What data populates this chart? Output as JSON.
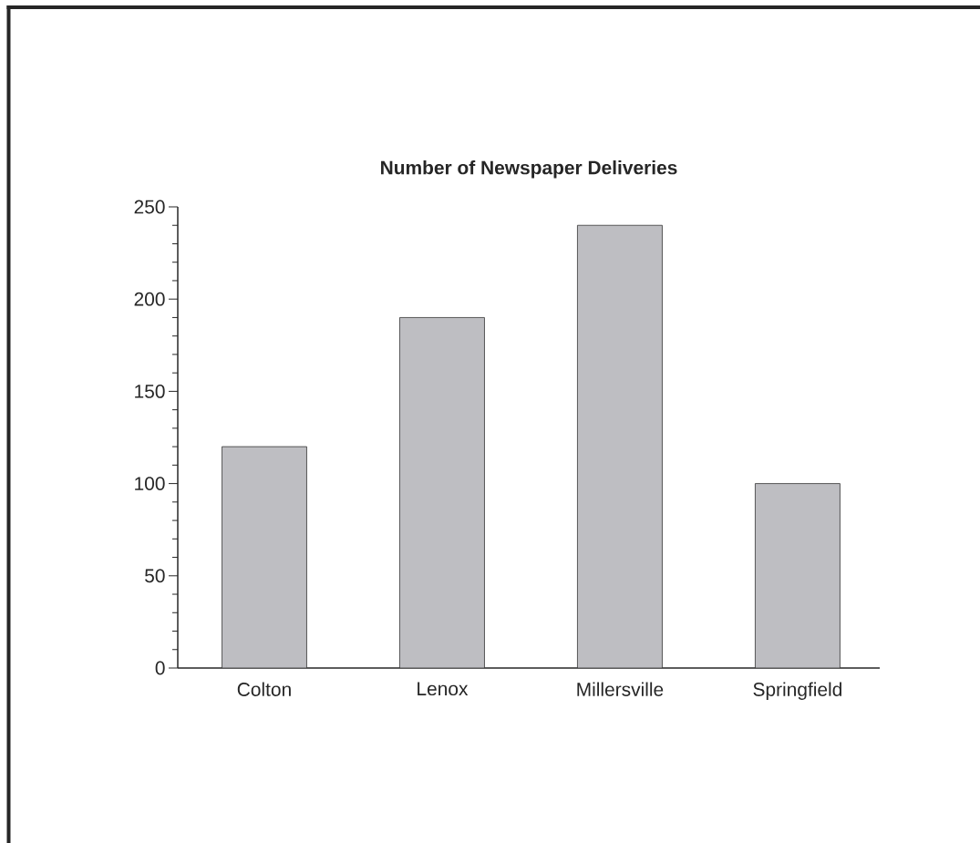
{
  "chart_data": {
    "type": "bar",
    "title": "Number of Newspaper Deliveries",
    "categories": [
      "Colton",
      "Lenox",
      "Millersville",
      "Springfield"
    ],
    "values": [
      120,
      190,
      240,
      100
    ],
    "color": "#bebec2",
    "ylim": [
      0,
      250
    ],
    "yticks": [
      0,
      50,
      100,
      150,
      200,
      250
    ],
    "grid": false
  }
}
